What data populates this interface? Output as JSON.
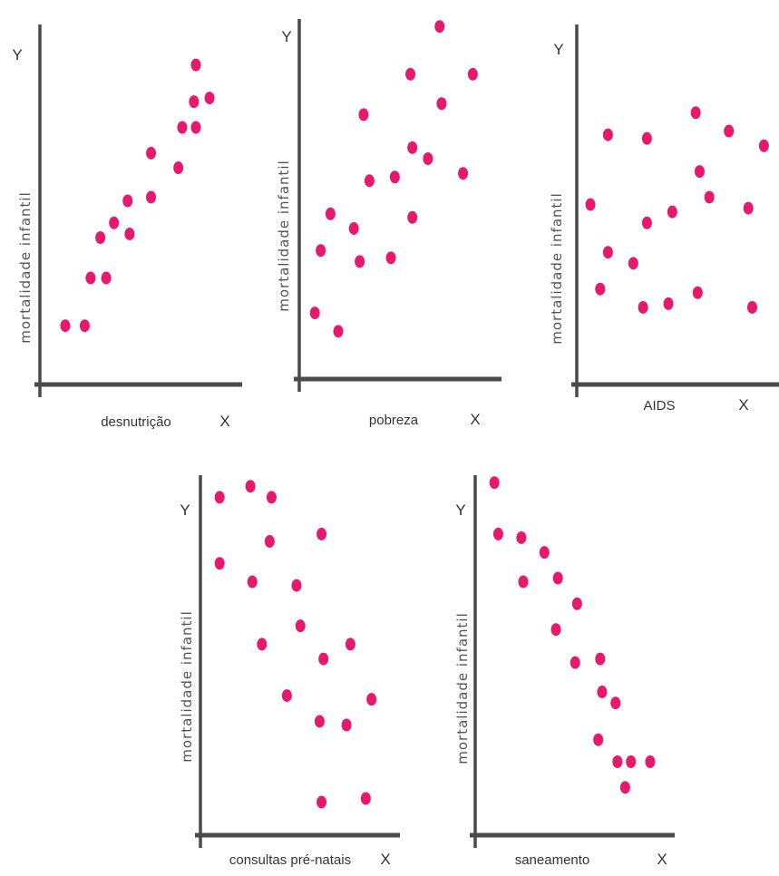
{
  "colors": {
    "point": "#e6196e",
    "axis": "#4a4a4a",
    "text": "#333333",
    "ylabel": "#555555"
  },
  "chart_data": [
    {
      "type": "scatter",
      "ylabel": "mortalidade infantil",
      "xlabel": "desnutrição",
      "x_letter": "X",
      "y_letter": "Y",
      "xlim": [
        0,
        100
      ],
      "ylim": [
        0,
        100
      ],
      "points": [
        {
          "x": 13,
          "y": 16
        },
        {
          "x": 23,
          "y": 16
        },
        {
          "x": 26,
          "y": 29
        },
        {
          "x": 34,
          "y": 29
        },
        {
          "x": 31,
          "y": 40
        },
        {
          "x": 38,
          "y": 44
        },
        {
          "x": 46,
          "y": 41
        },
        {
          "x": 45,
          "y": 50
        },
        {
          "x": 57,
          "y": 51
        },
        {
          "x": 57,
          "y": 63
        },
        {
          "x": 71,
          "y": 59
        },
        {
          "x": 73,
          "y": 70
        },
        {
          "x": 80,
          "y": 70
        },
        {
          "x": 79,
          "y": 77
        },
        {
          "x": 87,
          "y": 78
        },
        {
          "x": 80,
          "y": 87
        }
      ]
    },
    {
      "type": "scatter",
      "ylabel": "mortalidade infantil",
      "xlabel": "pobreza",
      "x_letter": "X",
      "y_letter": "Y",
      "xlim": [
        0,
        100
      ],
      "ylim": [
        0,
        100
      ],
      "points": [
        {
          "x": 8,
          "y": 18
        },
        {
          "x": 20,
          "y": 13
        },
        {
          "x": 11,
          "y": 35
        },
        {
          "x": 16,
          "y": 45
        },
        {
          "x": 28,
          "y": 41
        },
        {
          "x": 31,
          "y": 32
        },
        {
          "x": 33,
          "y": 72
        },
        {
          "x": 36,
          "y": 54
        },
        {
          "x": 47,
          "y": 33
        },
        {
          "x": 49,
          "y": 55
        },
        {
          "x": 58,
          "y": 44
        },
        {
          "x": 58,
          "y": 63
        },
        {
          "x": 57,
          "y": 83
        },
        {
          "x": 66,
          "y": 60
        },
        {
          "x": 73,
          "y": 75
        },
        {
          "x": 72,
          "y": 96
        },
        {
          "x": 84,
          "y": 56
        },
        {
          "x": 89,
          "y": 83
        }
      ]
    },
    {
      "type": "scatter",
      "ylabel": "mortalidade infantil",
      "xlabel": "AIDS",
      "x_letter": "X",
      "y_letter": "Y",
      "xlim": [
        0,
        100
      ],
      "ylim": [
        0,
        100
      ],
      "points": [
        {
          "x": 7,
          "y": 49
        },
        {
          "x": 12,
          "y": 26
        },
        {
          "x": 16,
          "y": 36
        },
        {
          "x": 16,
          "y": 68
        },
        {
          "x": 29,
          "y": 33
        },
        {
          "x": 34,
          "y": 21
        },
        {
          "x": 36,
          "y": 44
        },
        {
          "x": 36,
          "y": 67
        },
        {
          "x": 47,
          "y": 22
        },
        {
          "x": 49,
          "y": 47
        },
        {
          "x": 62,
          "y": 25
        },
        {
          "x": 61,
          "y": 74
        },
        {
          "x": 63,
          "y": 58
        },
        {
          "x": 68,
          "y": 51
        },
        {
          "x": 78,
          "y": 69
        },
        {
          "x": 88,
          "y": 48
        },
        {
          "x": 90,
          "y": 21
        },
        {
          "x": 96,
          "y": 65
        }
      ]
    },
    {
      "type": "scatter",
      "ylabel": "mortalidade infantil",
      "xlabel": "consultas pré-natais",
      "x_letter": "X",
      "y_letter": "Y",
      "xlim": [
        0,
        100
      ],
      "ylim": [
        0,
        100
      ],
      "points": [
        {
          "x": 10,
          "y": 92
        },
        {
          "x": 10,
          "y": 74
        },
        {
          "x": 26,
          "y": 95
        },
        {
          "x": 37,
          "y": 92
        },
        {
          "x": 36,
          "y": 80
        },
        {
          "x": 27,
          "y": 69
        },
        {
          "x": 32,
          "y": 52
        },
        {
          "x": 50,
          "y": 68
        },
        {
          "x": 52,
          "y": 57
        },
        {
          "x": 45,
          "y": 38
        },
        {
          "x": 63,
          "y": 82
        },
        {
          "x": 64,
          "y": 48
        },
        {
          "x": 62,
          "y": 31
        },
        {
          "x": 78,
          "y": 52
        },
        {
          "x": 76,
          "y": 30
        },
        {
          "x": 89,
          "y": 37
        },
        {
          "x": 63,
          "y": 9
        },
        {
          "x": 86,
          "y": 10
        }
      ]
    },
    {
      "type": "scatter",
      "ylabel": "mortalidade infantil",
      "xlabel": "saneamento",
      "x_letter": "X",
      "y_letter": "Y",
      "xlim": [
        0,
        100
      ],
      "ylim": [
        0,
        100
      ],
      "points": [
        {
          "x": 10,
          "y": 96
        },
        {
          "x": 12,
          "y": 82
        },
        {
          "x": 24,
          "y": 81
        },
        {
          "x": 25,
          "y": 69
        },
        {
          "x": 36,
          "y": 77
        },
        {
          "x": 43,
          "y": 70
        },
        {
          "x": 42,
          "y": 56
        },
        {
          "x": 53,
          "y": 63
        },
        {
          "x": 52,
          "y": 47
        },
        {
          "x": 65,
          "y": 48
        },
        {
          "x": 66,
          "y": 39
        },
        {
          "x": 73,
          "y": 36
        },
        {
          "x": 64,
          "y": 26
        },
        {
          "x": 74,
          "y": 20
        },
        {
          "x": 81,
          "y": 20
        },
        {
          "x": 91,
          "y": 20
        },
        {
          "x": 78,
          "y": 13
        }
      ]
    }
  ]
}
